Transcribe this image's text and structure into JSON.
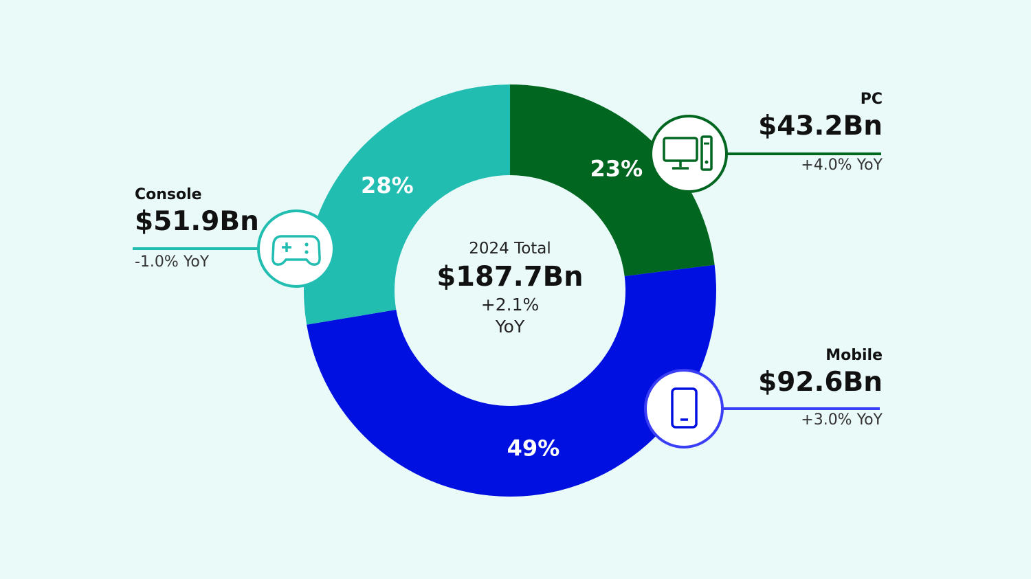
{
  "colors": {
    "background": "#eafaf9",
    "console": "#22bdb1",
    "pc": "#006620",
    "mobile": "#0010e0",
    "mobile_accent": "#3a3ef5"
  },
  "center": {
    "title": "2024 Total",
    "total": "$187.7Bn",
    "growth": "+2.1%",
    "yoy": "YoY"
  },
  "callouts": {
    "pc": {
      "name": "PC",
      "value": "$43.2Bn",
      "yoy": "+4.0% YoY",
      "icon": "desktop-computer-icon"
    },
    "mobile": {
      "name": "Mobile",
      "value": "$92.6Bn",
      "yoy": "+3.0% YoY",
      "icon": "smartphone-icon"
    },
    "console": {
      "name": "Console",
      "value": "$51.9Bn",
      "yoy": "-1.0% YoY",
      "icon": "gamepad-icon"
    }
  },
  "chart_data": {
    "type": "pie",
    "variant": "donut",
    "start": "12 o'clock, clockwise",
    "slices": [
      {
        "name": "PC",
        "value": 43.2,
        "percent_label": "23%",
        "color": "#006620"
      },
      {
        "name": "Mobile",
        "value": 92.6,
        "percent_label": "49%",
        "color": "#0010e0"
      },
      {
        "name": "Console",
        "value": 51.9,
        "percent_label": "28%",
        "color": "#22bdb1"
      }
    ]
  }
}
